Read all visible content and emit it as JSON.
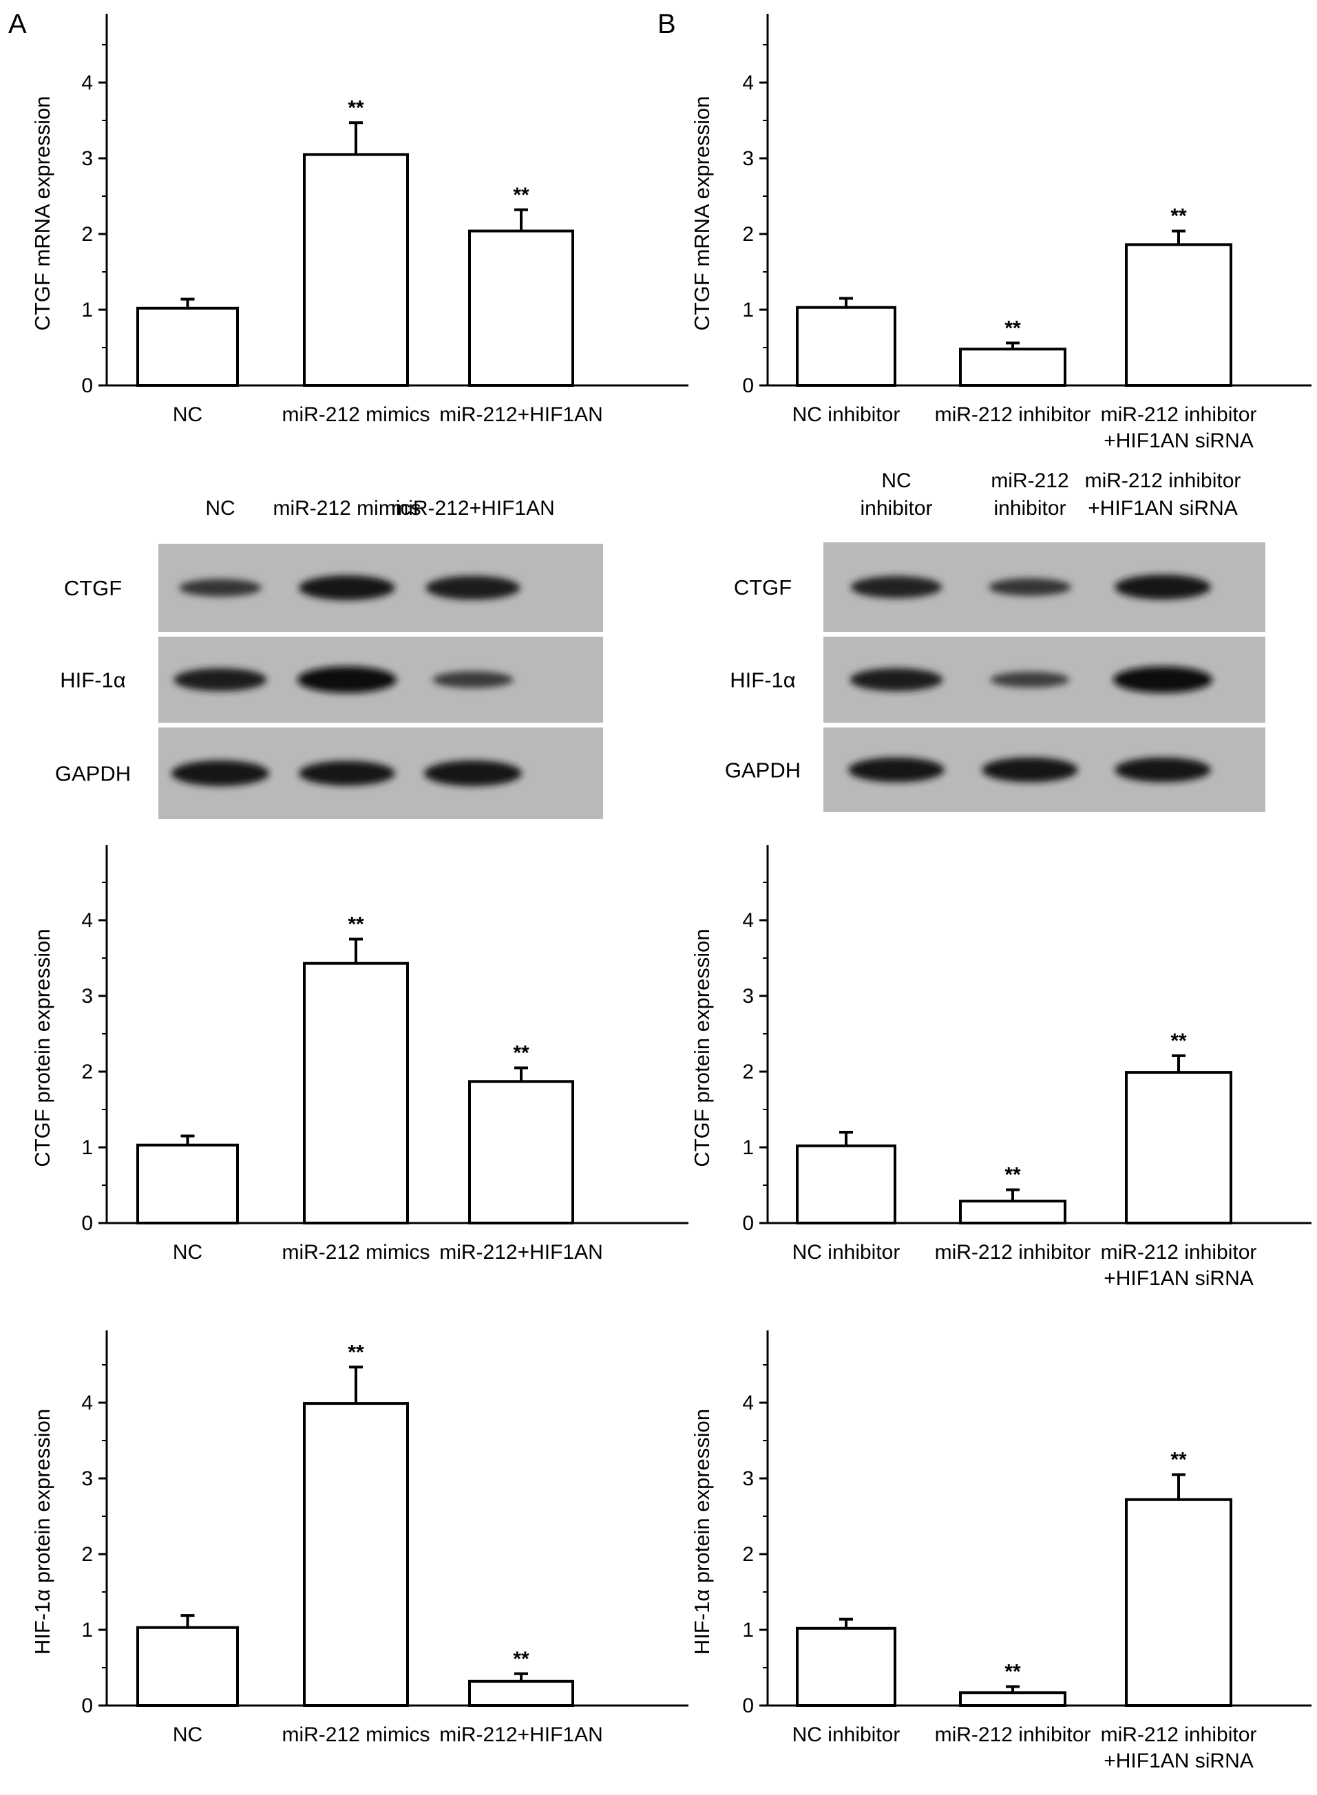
{
  "panels": [
    "A",
    "B"
  ],
  "chart_data": [
    {
      "type": "bar",
      "panel": "A",
      "ylabel": "CTGF mRNA expression",
      "ylim": [
        0,
        4.8
      ],
      "yticks": [
        0,
        1,
        2,
        3,
        4
      ],
      "categories": [
        [
          "NC"
        ],
        [
          "miR-212 mimics"
        ],
        [
          "miR-212+HIF1AN"
        ]
      ],
      "values": [
        1.02,
        3.05,
        2.04
      ],
      "errors": [
        0.12,
        0.42,
        0.28
      ],
      "annotations": [
        "",
        "**",
        "**"
      ]
    },
    {
      "type": "bar",
      "panel": "B",
      "ylabel": "CTGF mRNA expression",
      "ylim": [
        0,
        4.8
      ],
      "yticks": [
        0,
        1,
        2,
        3,
        4
      ],
      "categories": [
        [
          "NC inhibitor"
        ],
        [
          "miR-212 inhibitor"
        ],
        [
          "miR-212 inhibitor",
          "+HIF1AN siRNA"
        ]
      ],
      "values": [
        1.03,
        0.48,
        1.86
      ],
      "errors": [
        0.12,
        0.08,
        0.18
      ],
      "annotations": [
        "",
        "**",
        "**"
      ]
    },
    {
      "type": "bar",
      "panel": "A",
      "ylabel": "CTGF protein expression",
      "ylim": [
        0,
        4.8
      ],
      "yticks": [
        0,
        1,
        2,
        3,
        4
      ],
      "categories": [
        [
          "NC"
        ],
        [
          "miR-212 mimics"
        ],
        [
          "miR-212+HIF1AN"
        ]
      ],
      "values": [
        1.03,
        3.43,
        1.87
      ],
      "errors": [
        0.12,
        0.32,
        0.18
      ],
      "annotations": [
        "",
        "**",
        "**"
      ]
    },
    {
      "type": "bar",
      "panel": "B",
      "ylabel": "CTGF protein expression",
      "ylim": [
        0,
        4.8
      ],
      "yticks": [
        0,
        1,
        2,
        3,
        4
      ],
      "categories": [
        [
          "NC inhibitor"
        ],
        [
          "miR-212 inhibitor"
        ],
        [
          "miR-212 inhibitor",
          "+HIF1AN siRNA"
        ]
      ],
      "values": [
        1.02,
        0.29,
        1.99
      ],
      "errors": [
        0.18,
        0.15,
        0.22
      ],
      "annotations": [
        "",
        "**",
        "**"
      ]
    },
    {
      "type": "bar",
      "panel": "A",
      "ylabel": "HIF-1α protein expression",
      "ylim": [
        0,
        4.8
      ],
      "yticks": [
        0,
        1,
        2,
        3,
        4
      ],
      "categories": [
        [
          "NC"
        ],
        [
          "miR-212 mimics"
        ],
        [
          "miR-212+HIF1AN"
        ]
      ],
      "values": [
        1.03,
        3.99,
        0.32
      ],
      "errors": [
        0.16,
        0.48,
        0.1
      ],
      "annotations": [
        "",
        "**",
        "**"
      ]
    },
    {
      "type": "bar",
      "panel": "B",
      "ylabel": "HIF-1α protein expression",
      "ylim": [
        0,
        4.8
      ],
      "yticks": [
        0,
        1,
        2,
        3,
        4
      ],
      "categories": [
        [
          "NC inhibitor"
        ],
        [
          "miR-212 inhibitor"
        ],
        [
          "miR-212 inhibitor",
          "+HIF1AN siRNA"
        ]
      ],
      "values": [
        1.02,
        0.17,
        2.72
      ],
      "errors": [
        0.12,
        0.08,
        0.33
      ],
      "annotations": [
        "",
        "**",
        "**"
      ]
    }
  ],
  "blots": [
    {
      "panel": "A",
      "lanes": [
        [
          "NC"
        ],
        [
          "miR-212 mimics"
        ],
        [
          "miR-212+HIF1AN"
        ]
      ],
      "rows": [
        "CTGF",
        "HIF-1α",
        "GAPDH"
      ],
      "band_intensity": [
        [
          0.45,
          0.85,
          0.8
        ],
        [
          0.75,
          0.95,
          0.4
        ],
        [
          0.9,
          0.85,
          0.9
        ]
      ]
    },
    {
      "panel": "B",
      "lanes": [
        [
          "NC",
          "inhibitor"
        ],
        [
          "miR-212",
          "inhibitor"
        ],
        [
          "miR-212 inhibitor",
          "+HIF1AN siRNA"
        ]
      ],
      "rows": [
        "CTGF",
        "HIF-1α",
        "GAPDH"
      ],
      "band_intensity": [
        [
          0.7,
          0.45,
          0.85
        ],
        [
          0.75,
          0.35,
          0.95
        ],
        [
          0.85,
          0.85,
          0.85
        ]
      ]
    }
  ]
}
